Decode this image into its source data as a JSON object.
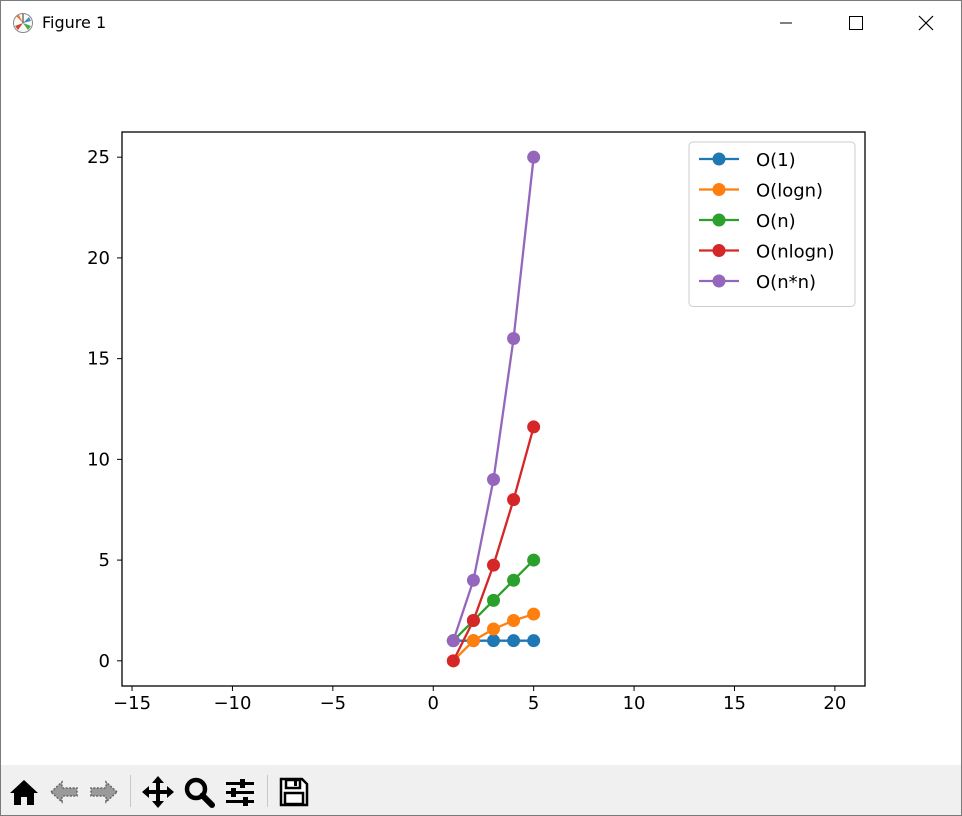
{
  "window": {
    "title": "Figure 1",
    "buttons": [
      "minimize",
      "maximize",
      "close"
    ]
  },
  "toolbar": {
    "tools": [
      {
        "name": "home",
        "icon": "home-icon"
      },
      {
        "name": "back",
        "icon": "back-arrow-icon"
      },
      {
        "name": "forward",
        "icon": "forward-arrow-icon"
      },
      {
        "name": "pan",
        "icon": "move-icon"
      },
      {
        "name": "zoom",
        "icon": "zoom-icon"
      },
      {
        "name": "subplots",
        "icon": "sliders-icon"
      },
      {
        "name": "save",
        "icon": "save-icon"
      }
    ]
  },
  "chart_data": {
    "type": "line",
    "title": "",
    "xlabel": "",
    "ylabel": "",
    "xlim": [
      -15.5,
      21.5
    ],
    "ylim": [
      -1.25,
      26.25
    ],
    "xticks": [
      -15,
      -10,
      -5,
      0,
      5,
      10,
      15,
      20
    ],
    "yticks": [
      0,
      5,
      10,
      15,
      20,
      25
    ],
    "x": [
      1,
      2,
      3,
      4,
      5
    ],
    "grid": false,
    "legend_position": "upper right",
    "series": [
      {
        "name": "O(1)",
        "color": "#1f77b4",
        "marker": "circle",
        "values": [
          1,
          1,
          1,
          1,
          1
        ]
      },
      {
        "name": "O(logn)",
        "color": "#ff7f0e",
        "marker": "circle",
        "values": [
          0,
          1,
          1.58,
          2,
          2.32
        ]
      },
      {
        "name": "O(n)",
        "color": "#2ca02c",
        "marker": "circle",
        "values": [
          1,
          2,
          3,
          4,
          5
        ]
      },
      {
        "name": "O(nlogn)",
        "color": "#d62728",
        "marker": "circle",
        "values": [
          0,
          2,
          4.75,
          8,
          11.61
        ]
      },
      {
        "name": "O(n*n)",
        "color": "#9467bd",
        "marker": "circle",
        "values": [
          1,
          4,
          9,
          16,
          25
        ]
      }
    ]
  }
}
